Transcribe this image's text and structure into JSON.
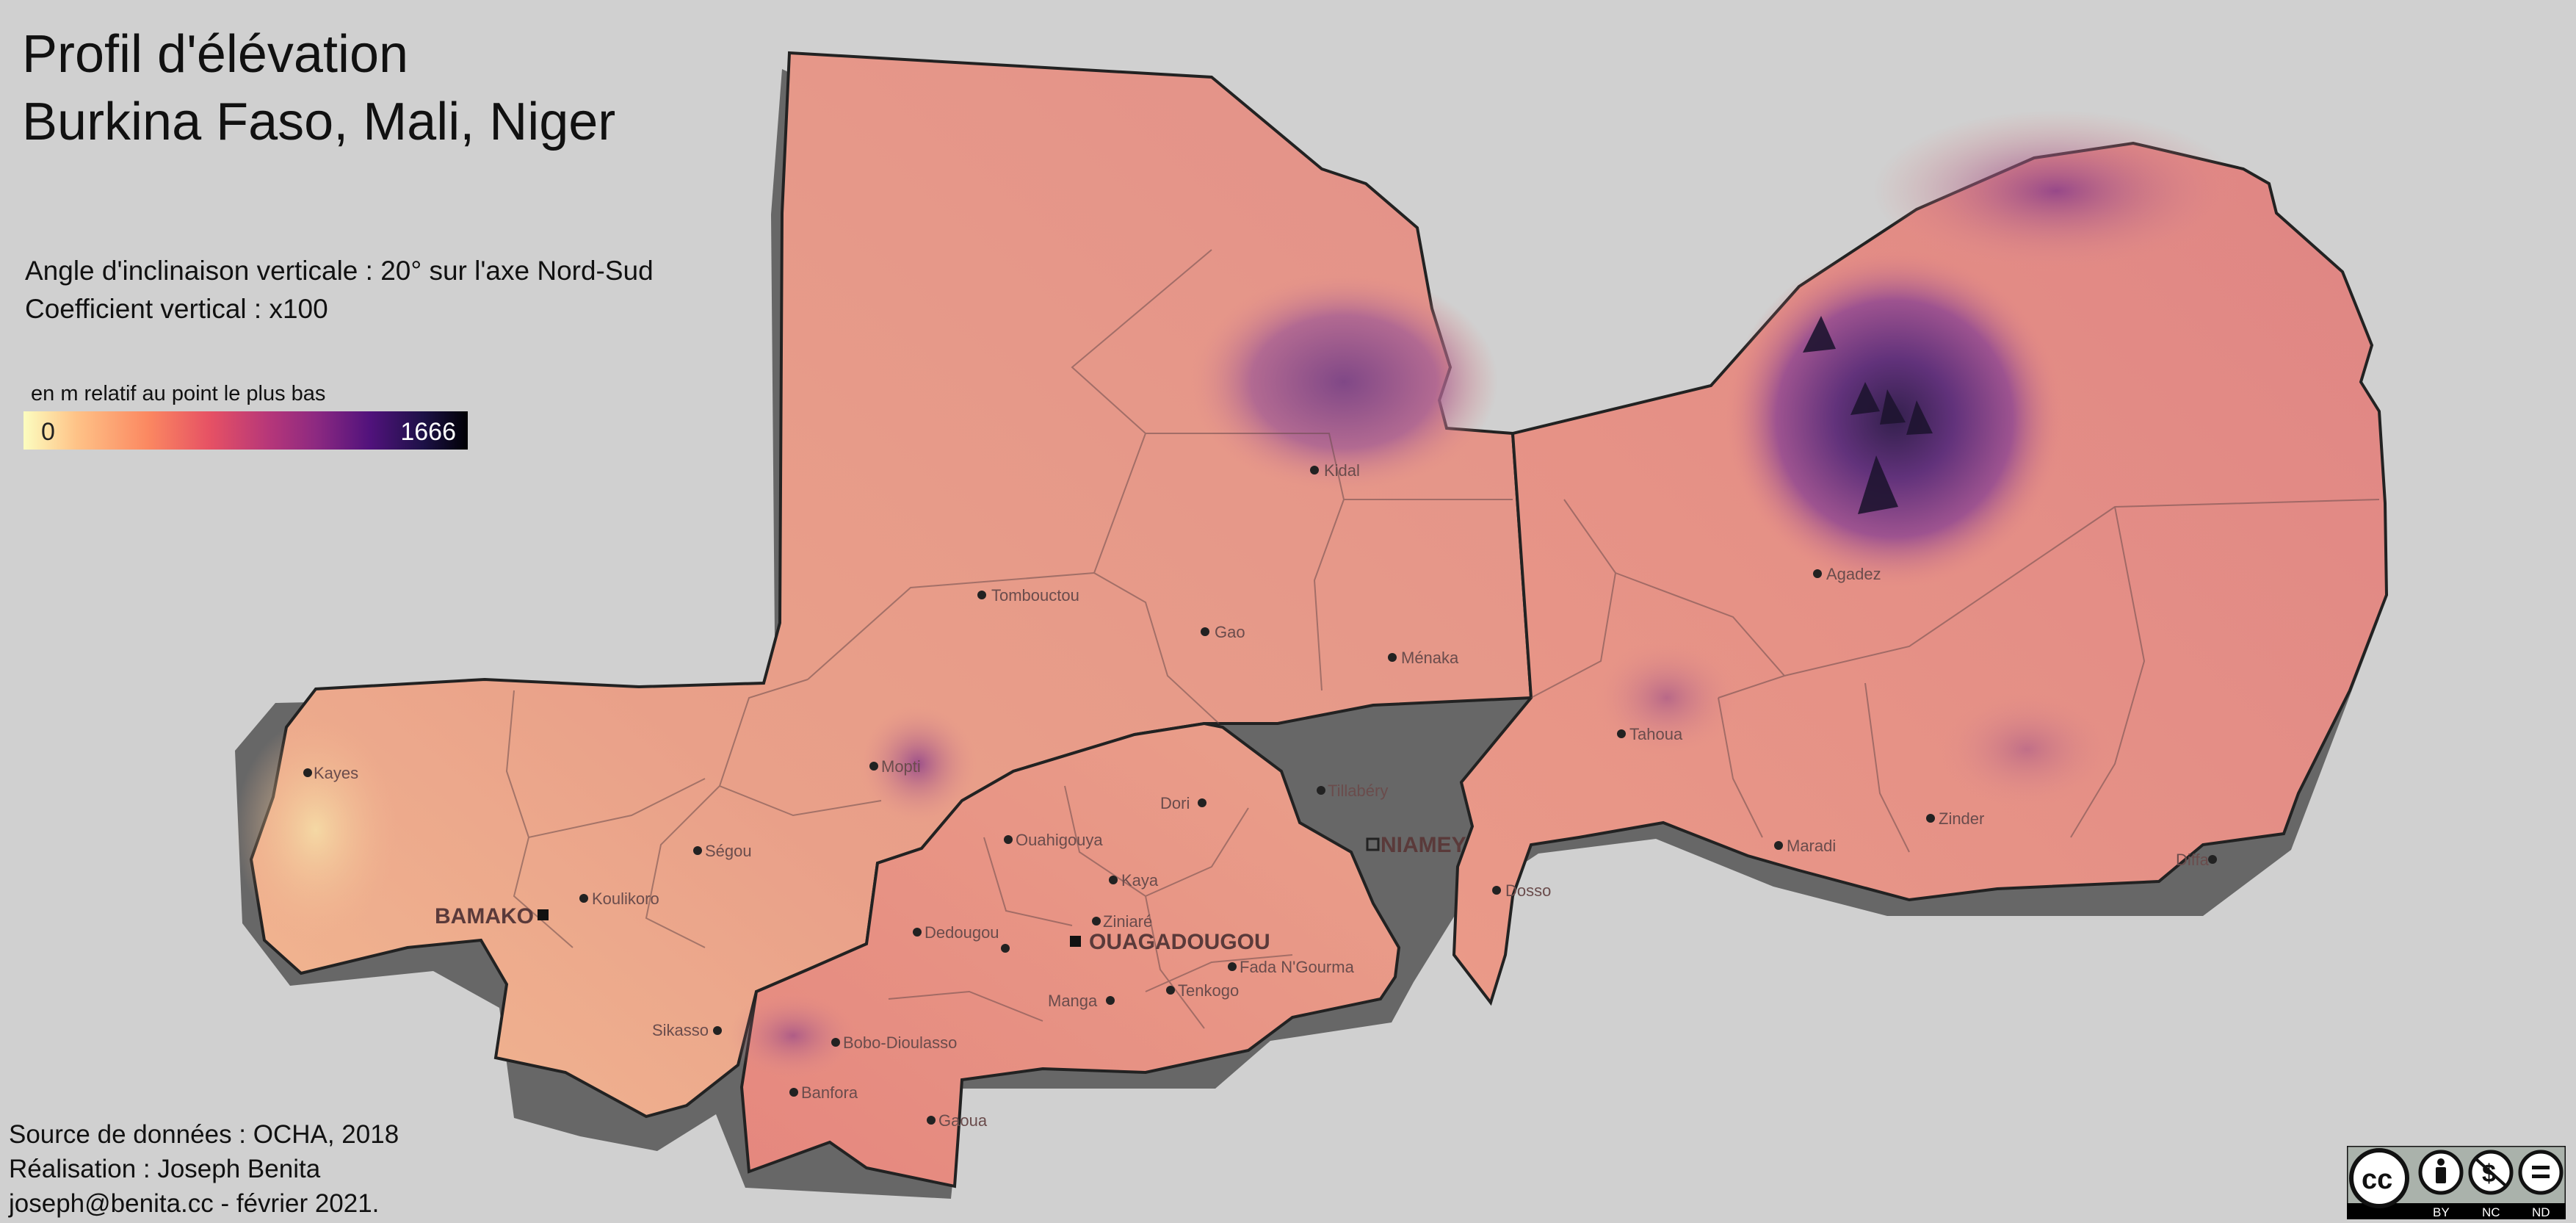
{
  "title": {
    "line1": "Profil d'élévation",
    "line2": "Burkina Faso, Mali, Niger"
  },
  "parameters": {
    "angle": "Angle d'inclinaison verticale : 20° sur l'axe Nord-Sud",
    "coefficient": "Coefficient vertical : x100"
  },
  "legend": {
    "label": "en m relatif au point le plus bas",
    "min": "0",
    "max": "1666",
    "colors": [
      "#fcfdbf",
      "#fec287",
      "#fb8861",
      "#e65164",
      "#b73779",
      "#8c2981",
      "#51127c",
      "#1d1147",
      "#000004"
    ]
  },
  "credits": {
    "source": "Source de données : OCHA, 2018",
    "author": "Réalisation : Joseph Benita",
    "contact": "joseph@benita.cc - février 2021."
  },
  "countries": [
    "Mali",
    "Niger",
    "Burkina Faso"
  ],
  "capitals": {
    "bamako": "BAMAKO",
    "niamey": "NIAMEY",
    "ouagadougou": "OUAGADOUGOU"
  },
  "cities": {
    "kidal": "Kidal",
    "tombouctou": "Tombouctou",
    "gao": "Gao",
    "menaka": "Ménaka",
    "kayes": "Kayes",
    "mopti": "Mopti",
    "segou": "Ségou",
    "koulikoro": "Koulikoro",
    "sikasso": "Sikasso",
    "agadez": "Agadez",
    "tahoua": "Tahoua",
    "tillabery": "Tillabéry",
    "dosso": "Dosso",
    "maradi": "Maradi",
    "zinder": "Zinder",
    "diffa": "Diffa",
    "dori": "Dori",
    "ouahigouya": "Ouahigouya",
    "kaya": "Kaya",
    "ziniare": "Ziniaré",
    "dedougou": "Dedougou",
    "fada": "Fada N'Gourma",
    "manga": "Manga",
    "tenkodogo": "Tenkogo",
    "bobo": "Bobo-Dioulasso",
    "banfora": "Banfora",
    "gaoua": "Gaoua"
  },
  "license": {
    "name": "CC BY-NC-ND",
    "icons": [
      "cc-icon",
      "by-icon",
      "nc-icon",
      "nd-icon"
    ],
    "labels": [
      "BY",
      "NC",
      "ND"
    ]
  }
}
